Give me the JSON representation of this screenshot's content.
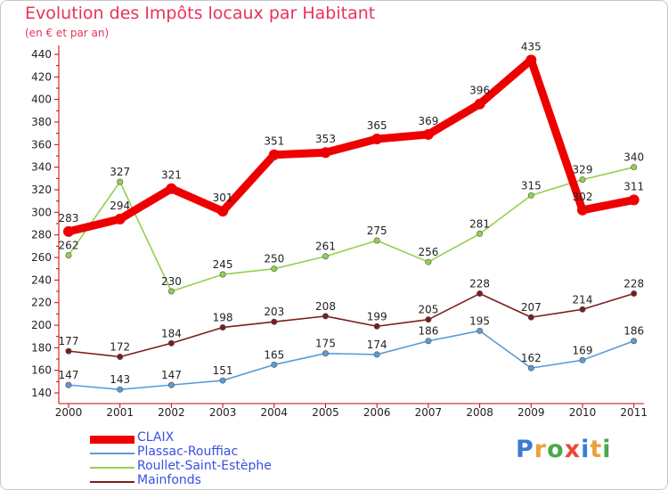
{
  "header": {
    "title": "Evolution des Impôts locaux par Habitant",
    "subtitle": "(en € et par an)"
  },
  "logo": {
    "letters": [
      "P",
      "r",
      "o",
      "x",
      "i",
      "t",
      "i"
    ],
    "colors": [
      "#3a7bd5",
      "#e8a33d",
      "#4aa84a",
      "#e84a3a",
      "#3a7bd5",
      "#e8a33d",
      "#4aa84a"
    ]
  },
  "chart_data": {
    "type": "line",
    "title": "Evolution des Impôts locaux par Habitant",
    "subtitle": "(en € et par an)",
    "x": [
      "2000",
      "2001",
      "2002",
      "2003",
      "2004",
      "2005",
      "2006",
      "2007",
      "2008",
      "2009",
      "2010",
      "2011"
    ],
    "ylim": [
      140,
      440
    ],
    "yticks": [
      140,
      160,
      180,
      200,
      220,
      240,
      260,
      280,
      300,
      320,
      340,
      360,
      380,
      400,
      420,
      440
    ],
    "grid": false,
    "legend_position": "bottom-left",
    "series": [
      {
        "name": "CLAIX",
        "color": "#ee0000",
        "values": [
          283,
          294,
          321,
          301,
          351,
          353,
          365,
          369,
          396,
          435,
          302,
          311
        ]
      },
      {
        "name": "Plassac-Rouffiac",
        "color": "#5b9bd5",
        "values": [
          147,
          143,
          147,
          151,
          165,
          175,
          174,
          186,
          195,
          162,
          169,
          186
        ]
      },
      {
        "name": "Roullet-Saint-Estèphe",
        "color": "#92d050",
        "values": [
          262,
          327,
          230,
          245,
          250,
          261,
          275,
          256,
          281,
          315,
          329,
          340
        ]
      },
      {
        "name": "Mainfonds",
        "color": "#7b1c1c",
        "values": [
          177,
          172,
          184,
          198,
          203,
          208,
          199,
          205,
          228,
          207,
          214,
          228
        ]
      }
    ]
  }
}
